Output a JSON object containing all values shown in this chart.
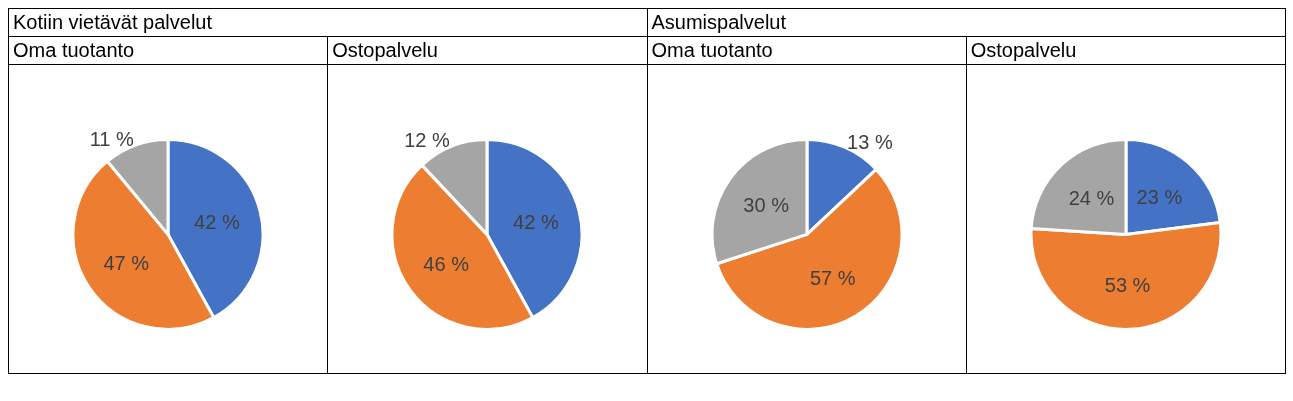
{
  "chart_data": [
    {
      "type": "pie",
      "subtitle": "Kotiin vietävät palvelut",
      "title": "Oma tuotanto",
      "categories": [
        null,
        null,
        null
      ],
      "values": [
        42,
        47,
        11
      ],
      "value_labels": [
        "42 %",
        "47 %",
        "11 %"
      ],
      "colors": [
        "#4472c4",
        "#ed7d31",
        "#a5a5a5"
      ]
    },
    {
      "type": "pie",
      "title": "Ostopalvelu",
      "categories": [
        null,
        null,
        null
      ],
      "values": [
        42,
        46,
        12
      ],
      "value_labels": [
        "42 %",
        "46 %",
        "12 %"
      ],
      "colors": [
        "#4472c4",
        "#ed7d31",
        "#a5a5a5"
      ]
    },
    {
      "type": "pie",
      "subtitle": "Asumispalvelut",
      "title": "Oma tuotanto",
      "categories": [
        null,
        null,
        null
      ],
      "values": [
        13,
        57,
        30
      ],
      "value_labels": [
        "13 %",
        "57 %",
        "30 %"
      ],
      "colors": [
        "#4472c4",
        "#ed7d31",
        "#a5a5a5"
      ]
    },
    {
      "type": "pie",
      "title": "Ostopalvelu",
      "categories": [
        null,
        null,
        null
      ],
      "values": [
        23,
        53,
        24
      ],
      "value_labels": [
        "23 %",
        "53 %",
        "24 %"
      ],
      "colors": [
        "#4472c4",
        "#ed7d31",
        "#a5a5a5"
      ]
    }
  ]
}
